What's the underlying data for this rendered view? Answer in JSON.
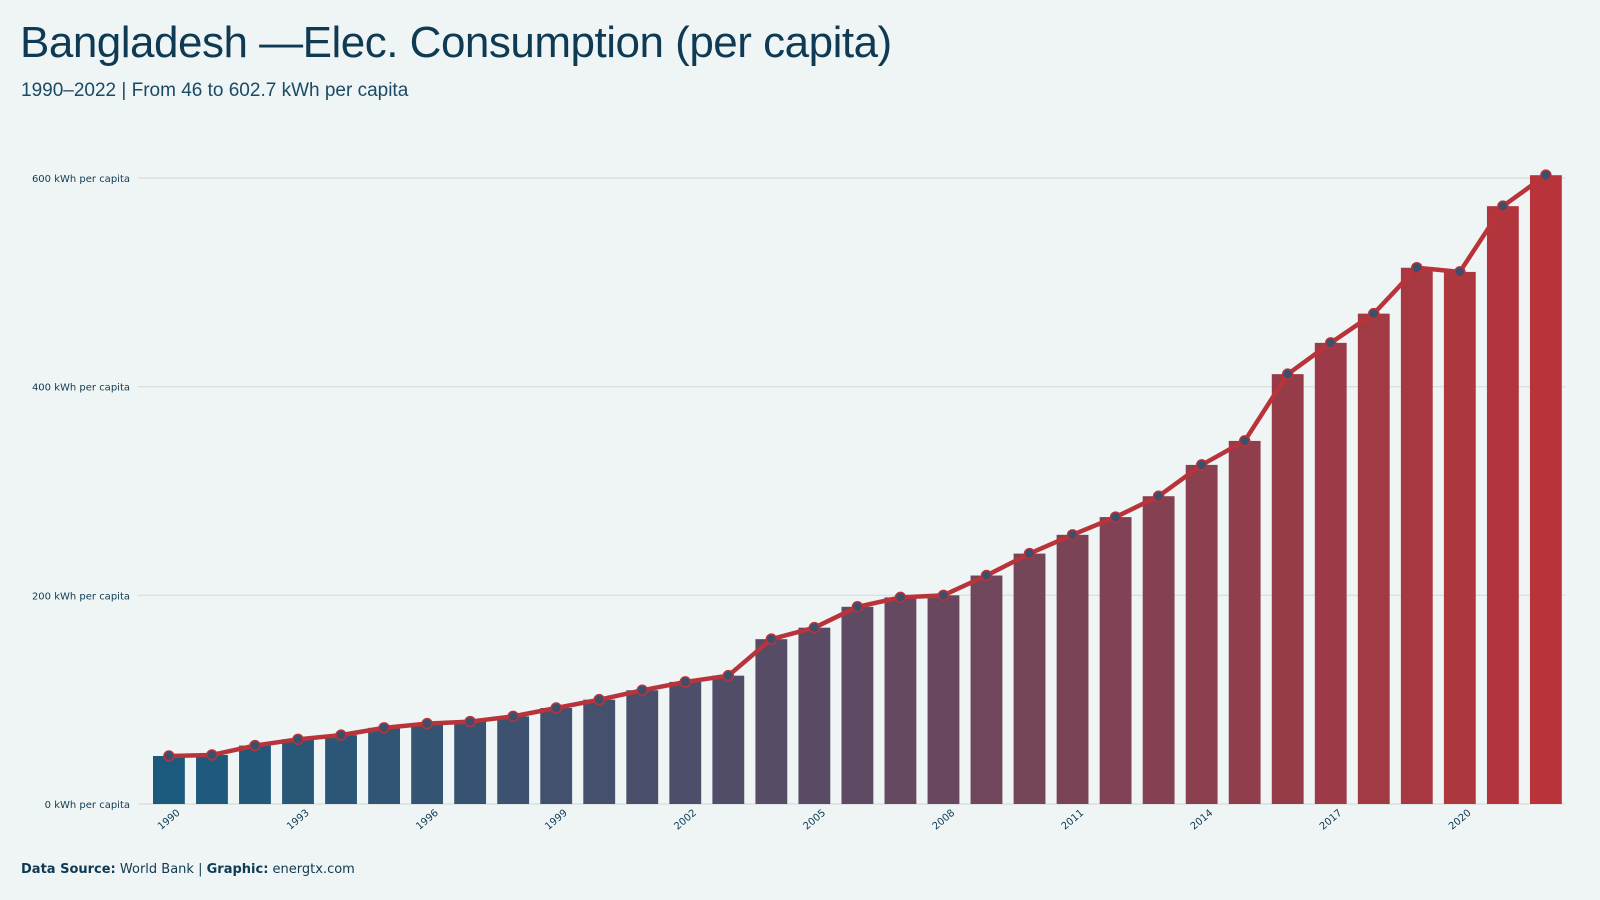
{
  "header": {
    "title": "Bangladesh —Elec. Consumption (per capita)",
    "subtitle": "1990–2022 | From 46 to 602.7 kWh per capita"
  },
  "footer": {
    "source_label": "Data Source:",
    "source_value": "World Bank",
    "separator": "|",
    "graphic_label": "Graphic:",
    "graphic_value": "energtx.com"
  },
  "colors": {
    "background": "#eff5f5",
    "bar_start": "#1b5a7d",
    "bar_mid": "#5e4a63",
    "bar_end": "#b8343a",
    "line": "#b8343a",
    "marker_fill": "#3d4f6b",
    "grid": "#d5dcdc"
  },
  "chart_data": {
    "type": "bar",
    "x": [
      1990,
      1991,
      1992,
      1993,
      1994,
      1995,
      1996,
      1997,
      1998,
      1999,
      2000,
      2001,
      2002,
      2003,
      2004,
      2005,
      2006,
      2007,
      2008,
      2009,
      2010,
      2011,
      2012,
      2013,
      2014,
      2015,
      2016,
      2017,
      2018,
      2019,
      2020,
      2021,
      2022
    ],
    "values": [
      46,
      47,
      56,
      62,
      66,
      73,
      77,
      79,
      84,
      92,
      100,
      109,
      117,
      123,
      158,
      169,
      189,
      198,
      200,
      219,
      240,
      258,
      275,
      295,
      325,
      348,
      412,
      442,
      470,
      514,
      510,
      573,
      602.7
    ],
    "overlay": "line with circular markers",
    "x_tick_labels": [
      "1990",
      "1993",
      "1996",
      "1999",
      "2002",
      "2005",
      "2008",
      "2011",
      "2014",
      "2017",
      "2020"
    ],
    "y_tick_labels": [
      "0 kWh per capita",
      "200 kWh per capita",
      "400 kWh per capita",
      "600 kWh per capita"
    ],
    "y_ticks": [
      0,
      200,
      400,
      600
    ],
    "ylim": [
      0,
      602.7
    ],
    "grid": "horizontal",
    "legend": "none"
  }
}
